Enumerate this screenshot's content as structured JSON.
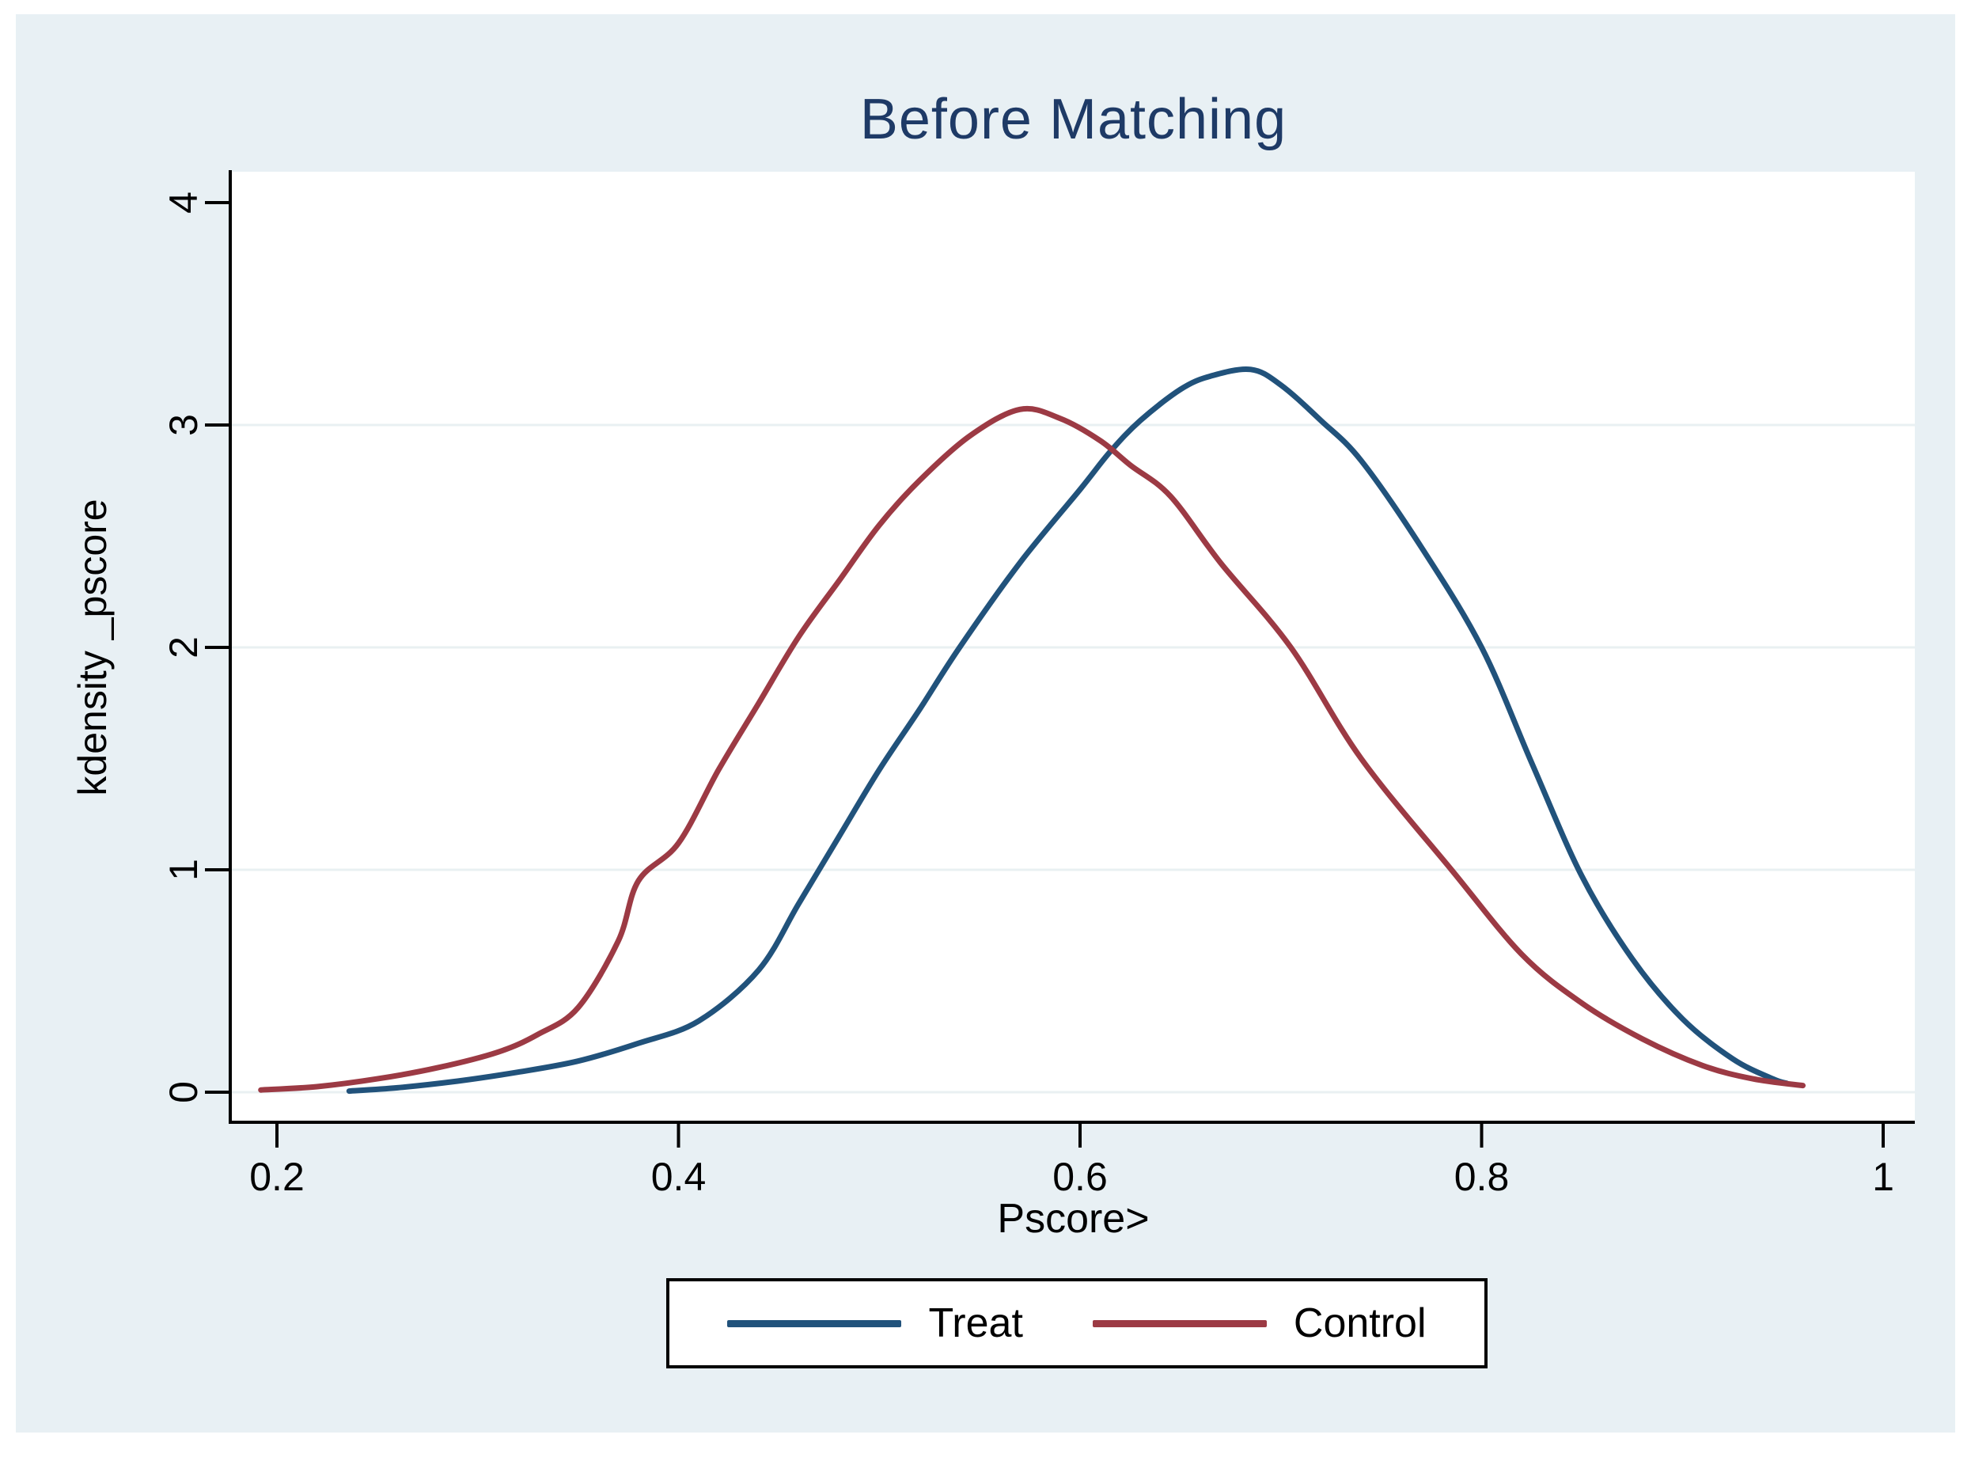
{
  "title": "Before Matching",
  "title_color": "#1e3a66",
  "panel_bg": "#e8f0f4",
  "plot_bg": "#ffffff",
  "grid_color": "#e9f0f2",
  "axis_color": "#000000",
  "legend": {
    "items": [
      {
        "label": "Treat",
        "color": "#21527b"
      },
      {
        "label": "Control",
        "color": "#9c3a44"
      }
    ]
  },
  "chart_data": {
    "type": "line",
    "title": "Before Matching",
    "xlabel": "Pscore>",
    "ylabel": "kdensity _pscore",
    "xlim": [
      0.178,
      1.016
    ],
    "ylim": [
      -0.13,
      4.14
    ],
    "x_ticks": [
      0.2,
      0.4,
      0.6,
      0.8,
      1
    ],
    "x_tick_labels": [
      "0.2",
      "0.4",
      "0.6",
      "0.8",
      "1"
    ],
    "y_ticks": [
      0,
      1,
      2,
      3,
      4
    ],
    "y_tick_labels": [
      "0",
      "1",
      "2",
      "3",
      "4"
    ],
    "gridlines_at": [
      0,
      1,
      2,
      3
    ],
    "grid": true,
    "legend_position": "bottom-center",
    "series": [
      {
        "name": "Treat",
        "color": "#21527b",
        "points": [
          [
            0.236,
            0.005
          ],
          [
            0.26,
            0.02
          ],
          [
            0.29,
            0.05
          ],
          [
            0.32,
            0.09
          ],
          [
            0.35,
            0.14
          ],
          [
            0.38,
            0.22
          ],
          [
            0.41,
            0.32
          ],
          [
            0.44,
            0.55
          ],
          [
            0.46,
            0.85
          ],
          [
            0.48,
            1.15
          ],
          [
            0.5,
            1.45
          ],
          [
            0.52,
            1.72
          ],
          [
            0.54,
            2.0
          ],
          [
            0.57,
            2.38
          ],
          [
            0.6,
            2.71
          ],
          [
            0.615,
            2.88
          ],
          [
            0.63,
            3.02
          ],
          [
            0.65,
            3.16
          ],
          [
            0.665,
            3.22
          ],
          [
            0.685,
            3.25
          ],
          [
            0.7,
            3.18
          ],
          [
            0.72,
            3.02
          ],
          [
            0.74,
            2.84
          ],
          [
            0.77,
            2.45
          ],
          [
            0.8,
            2.0
          ],
          [
            0.825,
            1.48
          ],
          [
            0.85,
            0.97
          ],
          [
            0.875,
            0.6
          ],
          [
            0.9,
            0.33
          ],
          [
            0.925,
            0.15
          ],
          [
            0.945,
            0.06
          ],
          [
            0.952,
            0.04
          ]
        ]
      },
      {
        "name": "Control",
        "color": "#9c3a44",
        "points": [
          [
            0.192,
            0.01
          ],
          [
            0.22,
            0.025
          ],
          [
            0.25,
            0.06
          ],
          [
            0.28,
            0.11
          ],
          [
            0.31,
            0.18
          ],
          [
            0.33,
            0.26
          ],
          [
            0.35,
            0.38
          ],
          [
            0.37,
            0.68
          ],
          [
            0.38,
            0.95
          ],
          [
            0.4,
            1.12
          ],
          [
            0.42,
            1.45
          ],
          [
            0.44,
            1.75
          ],
          [
            0.46,
            2.05
          ],
          [
            0.48,
            2.3
          ],
          [
            0.5,
            2.55
          ],
          [
            0.52,
            2.75
          ],
          [
            0.545,
            2.95
          ],
          [
            0.57,
            3.07
          ],
          [
            0.59,
            3.03
          ],
          [
            0.61,
            2.93
          ],
          [
            0.625,
            2.82
          ],
          [
            0.645,
            2.68
          ],
          [
            0.67,
            2.38
          ],
          [
            0.705,
            2.0
          ],
          [
            0.74,
            1.5
          ],
          [
            0.785,
            1.0
          ],
          [
            0.82,
            0.62
          ],
          [
            0.85,
            0.4
          ],
          [
            0.88,
            0.24
          ],
          [
            0.91,
            0.12
          ],
          [
            0.935,
            0.06
          ],
          [
            0.96,
            0.03
          ]
        ]
      }
    ]
  }
}
